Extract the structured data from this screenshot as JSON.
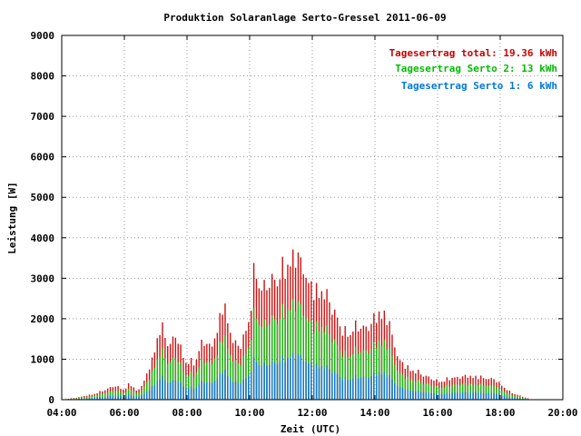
{
  "chart_data": {
    "type": "bar",
    "stacked": true,
    "title": "Produktion Solaranlage Serto-Gressel 2011-06-09",
    "xlabel": "Zeit (UTC)",
    "ylabel": "Leistung [W]",
    "xlim": [
      "04:00",
      "20:00"
    ],
    "ylim": [
      0,
      9000
    ],
    "x_ticks": [
      "04:00",
      "06:00",
      "08:00",
      "10:00",
      "12:00",
      "14:00",
      "16:00",
      "18:00",
      "20:00"
    ],
    "y_ticks": [
      "0",
      "1000",
      "2000",
      "3000",
      "4000",
      "5000",
      "6000",
      "7000",
      "8000",
      "9000"
    ],
    "grid": true,
    "legend_position": "top-right",
    "legend": [
      {
        "label": "Tagesertrag total: 19.36 kWh",
        "color": "#cc0000"
      },
      {
        "label": "Tagesertrag Serto 2: 13 kWh",
        "color": "#00bb00"
      },
      {
        "label": "Tagesertrag Serto 1: 6 kWh",
        "color": "#0077dd"
      }
    ],
    "series": [
      {
        "key": "serto1",
        "color": "#1177dd",
        "fraction_of_total": 0.31
      },
      {
        "key": "serto2",
        "color": "#11bb11",
        "fraction_of_total": 0.67
      },
      {
        "key": "total",
        "color": "#cc1111"
      }
    ],
    "total_profile": [
      [
        "04:00",
        0
      ],
      [
        "04:30",
        60
      ],
      [
        "05:00",
        150
      ],
      [
        "05:20",
        250
      ],
      [
        "05:40",
        380
      ],
      [
        "06:00",
        280
      ],
      [
        "06:10",
        450
      ],
      [
        "06:25",
        220
      ],
      [
        "06:40",
        550
      ],
      [
        "06:55",
        1200
      ],
      [
        "07:10",
        2050
      ],
      [
        "07:25",
        1500
      ],
      [
        "07:40",
        1750
      ],
      [
        "07:55",
        1100
      ],
      [
        "08:15",
        1000
      ],
      [
        "08:30",
        1650
      ],
      [
        "08:45",
        1400
      ],
      [
        "09:00",
        2000
      ],
      [
        "09:10",
        2700
      ],
      [
        "09:25",
        1700
      ],
      [
        "09:40",
        1400
      ],
      [
        "10:00",
        2200
      ],
      [
        "10:10",
        3700
      ],
      [
        "10:25",
        3000
      ],
      [
        "10:40",
        3200
      ],
      [
        "11:00",
        3500
      ],
      [
        "11:20",
        3850
      ],
      [
        "11:30",
        4000
      ],
      [
        "11:45",
        3500
      ],
      [
        "12:00",
        3000
      ],
      [
        "12:20",
        3000
      ],
      [
        "12:40",
        2500
      ],
      [
        "13:00",
        1800
      ],
      [
        "13:20",
        2000
      ],
      [
        "13:40",
        1950
      ],
      [
        "14:00",
        2200
      ],
      [
        "14:10",
        2450
      ],
      [
        "14:25",
        2200
      ],
      [
        "14:45",
        1100
      ],
      [
        "15:00",
        900
      ],
      [
        "15:30",
        700
      ],
      [
        "16:00",
        500
      ],
      [
        "16:30",
        600
      ],
      [
        "17:00",
        650
      ],
      [
        "17:30",
        600
      ],
      [
        "17:50",
        550
      ],
      [
        "18:20",
        200
      ],
      [
        "18:50",
        50
      ],
      [
        "19:00",
        0
      ]
    ]
  }
}
